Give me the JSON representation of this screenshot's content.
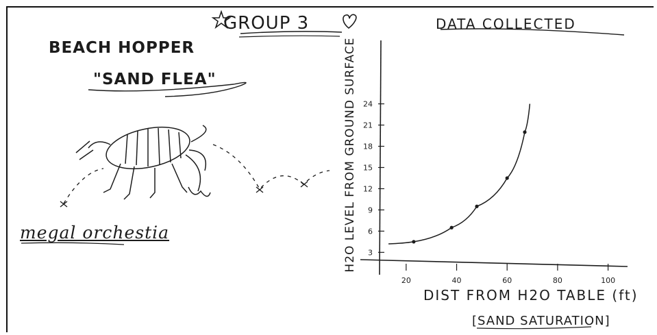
{
  "header": {
    "title": "GROUP 3",
    "right_label": "DATA COLLECTED"
  },
  "specimen": {
    "common_name": "BEACH HOPPER",
    "nickname": "\"SAND FLEA\"",
    "latin_name": "megal orchestia",
    "drawing_icon": "sand-flea-drawing"
  },
  "chart_data": {
    "type": "scatter",
    "title": "",
    "xlabel": "DIST FROM H2O TABLE (ft)",
    "xlabel_sub": "[SAND SATURATION]",
    "ylabel": "H2O LEVEL FROM GROUND SURFACE",
    "xlim": [
      10,
      105
    ],
    "ylim": [
      1,
      32
    ],
    "x_ticks": [
      "20",
      "40",
      "60",
      "80",
      "100"
    ],
    "y_ticks": [
      "3",
      "6",
      "9",
      "12",
      "15",
      "18",
      "21",
      "24"
    ],
    "x_tick_values": [
      20,
      40,
      60,
      80,
      100
    ],
    "y_tick_values": [
      3,
      6,
      9,
      12,
      15,
      18,
      21,
      24
    ],
    "points": [
      {
        "x": 23,
        "y": 4.5
      },
      {
        "x": 38,
        "y": 6.5
      },
      {
        "x": 48,
        "y": 9.5
      },
      {
        "x": 60,
        "y": 13.5
      },
      {
        "x": 67,
        "y": 20
      }
    ],
    "trend": "exponential curve through points",
    "grid": false,
    "legend": "none",
    "ink_color": "#1c1c1c"
  }
}
